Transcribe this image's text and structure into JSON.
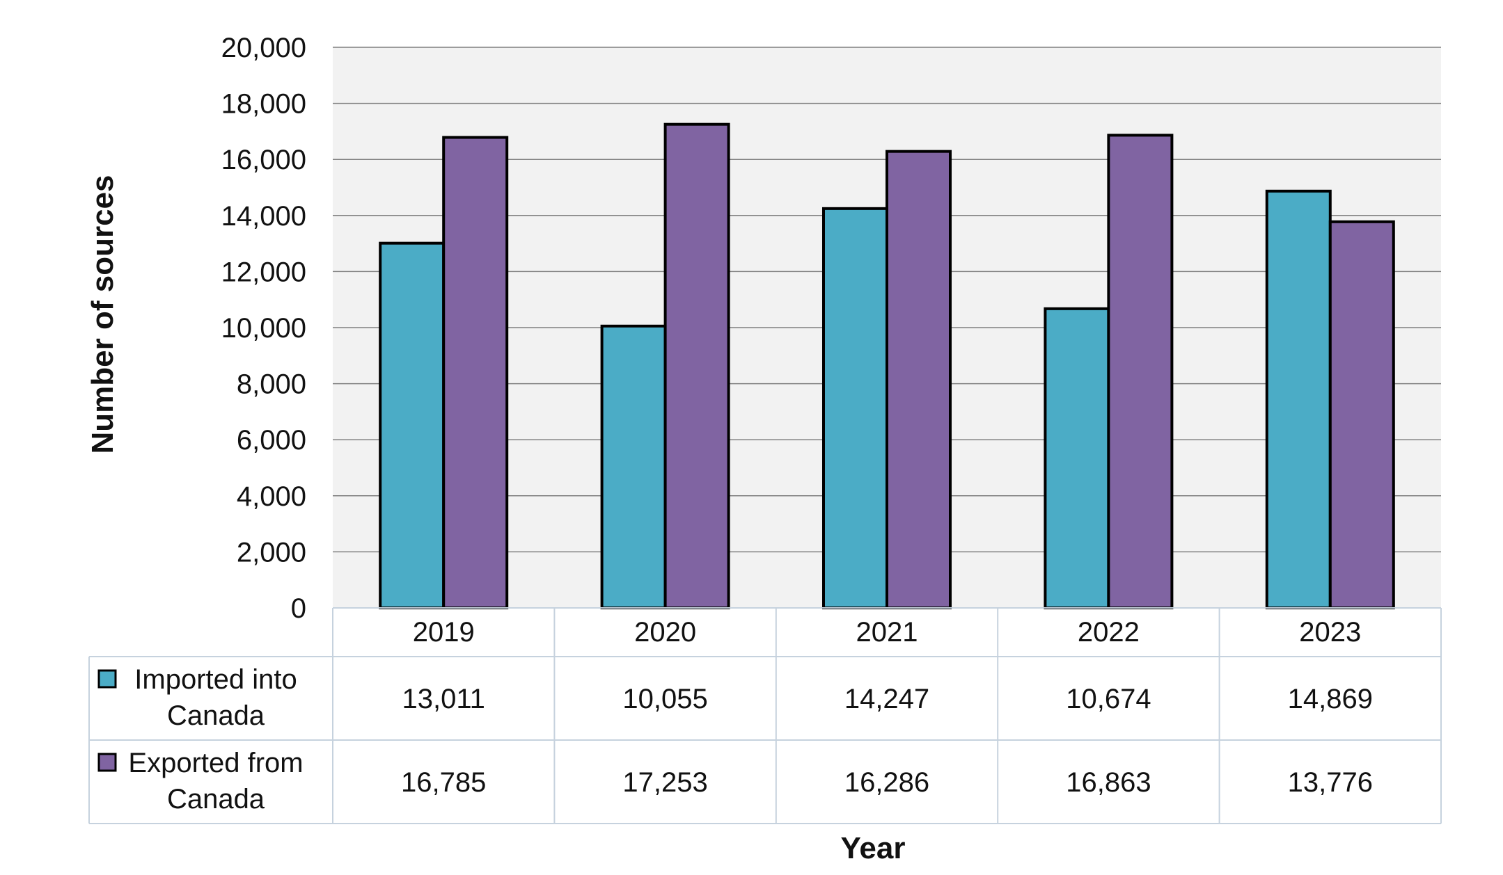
{
  "chart_data": {
    "type": "bar",
    "categories": [
      "2019",
      "2020",
      "2021",
      "2022",
      "2023"
    ],
    "series": [
      {
        "name": "Imported into Canada",
        "label_lines": [
          "Imported into",
          "Canada"
        ],
        "color": "#4bacc6",
        "values": [
          13011,
          10055,
          14247,
          10674,
          14869
        ],
        "value_labels": [
          "13,011",
          "10,055",
          "14,247",
          "10,674",
          "14,869"
        ]
      },
      {
        "name": "Exported from Canada",
        "label_lines": [
          "Exported from",
          "Canada"
        ],
        "color": "#8064a2",
        "values": [
          16785,
          17253,
          16286,
          16863,
          13776
        ],
        "value_labels": [
          "16,785",
          "17,253",
          "16,286",
          "16,863",
          "13,776"
        ]
      }
    ],
    "xlabel": "Year",
    "ylabel": "Number of sources",
    "ylim": [
      0,
      20000
    ],
    "yticks": [
      0,
      2000,
      4000,
      6000,
      8000,
      10000,
      12000,
      14000,
      16000,
      18000,
      20000
    ],
    "ytick_labels": [
      "0",
      "2,000",
      "4,000",
      "6,000",
      "8,000",
      "10,000",
      "12,000",
      "14,000",
      "16,000",
      "18,000",
      "20,000"
    ],
    "grid": true,
    "legend": "data-table",
    "plot_background": "#f2f2f2"
  }
}
